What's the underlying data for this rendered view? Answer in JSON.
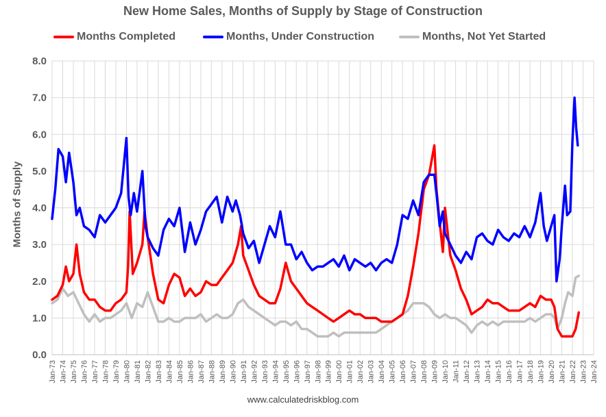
{
  "chart_data": {
    "type": "line",
    "title": "New Home Sales, Months of Supply by Stage of Construction",
    "ylabel": "Months of Supply",
    "xlabel": "",
    "ylim": [
      0,
      8
    ],
    "yticks": [
      "0.0",
      "1.0",
      "2.0",
      "3.0",
      "4.0",
      "5.0",
      "6.0",
      "7.0",
      "8.0"
    ],
    "xlim": [
      1973,
      2024
    ],
    "xticks": [
      "Jan-73",
      "Jan-74",
      "Jan-75",
      "Jan-76",
      "Jan-77",
      "Jan-78",
      "Jan-79",
      "Jan-80",
      "Jan-81",
      "Jan-82",
      "Jan-83",
      "Jan-84",
      "Jan-85",
      "Jan-86",
      "Jan-87",
      "Jan-88",
      "Jan-89",
      "Jan-90",
      "Jan-91",
      "Jan-92",
      "Jan-93",
      "Jan-94",
      "Jan-95",
      "Jan-96",
      "Jan-97",
      "Jan-98",
      "Jan-99",
      "Jan-00",
      "Jan-01",
      "Jan-02",
      "Jan-03",
      "Jan-04",
      "Jan-05",
      "Jan-06",
      "Jan-07",
      "Jan-08",
      "Jan-09",
      "Jan-10",
      "Jan-11",
      "Jan-12",
      "Jan-13",
      "Jan-14",
      "Jan-15",
      "Jan-16",
      "Jan-17",
      "Jan-18",
      "Jan-19",
      "Jan-20",
      "Jan-21",
      "Jan-22",
      "Jan-23",
      "Jan-24"
    ],
    "grid": true,
    "legend_position": "top",
    "series": [
      {
        "name": "Months Completed",
        "color": "#ff0000",
        "x": [
          1973.0,
          1973.5,
          1974.0,
          1974.3,
          1974.6,
          1975.0,
          1975.3,
          1975.6,
          1976.0,
          1976.5,
          1977.0,
          1977.5,
          1978.0,
          1978.5,
          1979.0,
          1979.5,
          1980.0,
          1980.15,
          1980.3,
          1980.6,
          1981.0,
          1981.5,
          1981.7,
          1982.0,
          1982.5,
          1983.0,
          1983.5,
          1984.0,
          1984.5,
          1985.0,
          1985.5,
          1986.0,
          1986.5,
          1987.0,
          1987.5,
          1988.0,
          1988.5,
          1989.0,
          1989.5,
          1990.0,
          1990.5,
          1990.8,
          1991.0,
          1991.5,
          1992.0,
          1992.5,
          1993.0,
          1993.5,
          1994.0,
          1994.5,
          1995.0,
          1995.5,
          1996.0,
          1996.5,
          1997.0,
          1997.5,
          1998.0,
          1998.5,
          1999.0,
          1999.5,
          2000.0,
          2000.5,
          2001.0,
          2001.5,
          2002.0,
          2002.5,
          2003.0,
          2003.5,
          2004.0,
          2004.5,
          2005.0,
          2005.5,
          2006.0,
          2006.5,
          2007.0,
          2007.5,
          2008.0,
          2008.5,
          2009.0,
          2009.2,
          2009.5,
          2009.8,
          2010.0,
          2010.3,
          2010.5,
          2011.0,
          2011.5,
          2012.0,
          2012.5,
          2013.0,
          2013.5,
          2014.0,
          2014.5,
          2015.0,
          2015.5,
          2016.0,
          2016.5,
          2017.0,
          2017.5,
          2018.0,
          2018.5,
          2019.0,
          2019.5,
          2020.0,
          2020.3,
          2020.6,
          2021.0,
          2021.5,
          2022.0,
          2022.3,
          2022.6
        ],
        "y": [
          1.5,
          1.6,
          1.9,
          2.4,
          2.0,
          2.2,
          3.0,
          2.2,
          1.7,
          1.5,
          1.5,
          1.3,
          1.2,
          1.2,
          1.4,
          1.5,
          1.7,
          2.4,
          3.9,
          2.2,
          2.5,
          3.0,
          3.9,
          3.2,
          2.2,
          1.5,
          1.4,
          1.9,
          2.2,
          2.1,
          1.6,
          1.8,
          1.6,
          1.7,
          2.0,
          1.9,
          1.9,
          2.1,
          2.3,
          2.5,
          3.0,
          3.5,
          2.7,
          2.3,
          1.9,
          1.6,
          1.5,
          1.4,
          1.4,
          1.8,
          2.5,
          2.0,
          1.8,
          1.6,
          1.4,
          1.3,
          1.2,
          1.1,
          1.0,
          0.9,
          1.0,
          1.1,
          1.2,
          1.1,
          1.1,
          1.0,
          1.0,
          1.0,
          0.9,
          0.9,
          0.9,
          1.0,
          1.1,
          1.6,
          2.4,
          3.3,
          4.5,
          4.9,
          5.7,
          4.5,
          3.6,
          2.8,
          4.0,
          3.2,
          2.7,
          2.3,
          1.8,
          1.5,
          1.1,
          1.2,
          1.3,
          1.5,
          1.4,
          1.4,
          1.3,
          1.2,
          1.2,
          1.2,
          1.3,
          1.4,
          1.3,
          1.6,
          1.5,
          1.5,
          1.3,
          0.7,
          0.5,
          0.5,
          0.5,
          0.7,
          1.15
        ]
      },
      {
        "name": "Months, Under Construction",
        "color": "#0000ff",
        "x": [
          1973.0,
          1973.3,
          1973.6,
          1974.0,
          1974.3,
          1974.6,
          1975.0,
          1975.3,
          1975.6,
          1976.0,
          1976.5,
          1977.0,
          1977.5,
          1978.0,
          1978.5,
          1979.0,
          1979.5,
          1980.0,
          1980.2,
          1980.4,
          1980.7,
          1981.0,
          1981.5,
          1981.8,
          1982.0,
          1982.5,
          1983.0,
          1983.5,
          1984.0,
          1984.5,
          1985.0,
          1985.5,
          1986.0,
          1986.5,
          1987.0,
          1987.5,
          1988.0,
          1988.5,
          1989.0,
          1989.5,
          1990.0,
          1990.3,
          1990.7,
          1991.0,
          1991.5,
          1992.0,
          1992.5,
          1993.0,
          1993.5,
          1994.0,
          1994.5,
          1995.0,
          1995.5,
          1996.0,
          1996.5,
          1997.0,
          1997.5,
          1998.0,
          1998.5,
          1999.0,
          1999.5,
          2000.0,
          2000.5,
          2001.0,
          2001.5,
          2002.0,
          2002.5,
          2003.0,
          2003.5,
          2004.0,
          2004.5,
          2005.0,
          2005.5,
          2006.0,
          2006.5,
          2007.0,
          2007.5,
          2008.0,
          2008.5,
          2009.0,
          2009.2,
          2009.5,
          2009.8,
          2010.0,
          2010.5,
          2011.0,
          2011.5,
          2012.0,
          2012.5,
          2013.0,
          2013.5,
          2014.0,
          2014.5,
          2015.0,
          2015.5,
          2016.0,
          2016.5,
          2017.0,
          2017.5,
          2018.0,
          2018.5,
          2019.0,
          2019.3,
          2019.6,
          2020.0,
          2020.3,
          2020.5,
          2020.8,
          2021.0,
          2021.3,
          2021.5,
          2021.8,
          2022.0,
          2022.2,
          2022.35,
          2022.5
        ],
        "y": [
          3.7,
          4.5,
          5.6,
          5.4,
          4.7,
          5.5,
          4.7,
          3.8,
          4.0,
          3.5,
          3.4,
          3.2,
          3.8,
          3.6,
          3.8,
          4.0,
          4.4,
          5.9,
          4.3,
          3.8,
          4.4,
          3.9,
          5.0,
          3.5,
          3.2,
          2.9,
          2.7,
          3.4,
          3.7,
          3.5,
          4.0,
          2.8,
          3.6,
          3.0,
          3.4,
          3.9,
          4.1,
          4.3,
          3.6,
          4.3,
          3.9,
          4.2,
          3.8,
          3.3,
          2.9,
          3.1,
          2.5,
          3.0,
          3.5,
          3.2,
          3.9,
          3.0,
          3.0,
          2.6,
          2.8,
          2.5,
          2.3,
          2.4,
          2.4,
          2.5,
          2.6,
          2.4,
          2.7,
          2.3,
          2.6,
          2.5,
          2.4,
          2.5,
          2.3,
          2.5,
          2.6,
          2.5,
          3.0,
          3.8,
          3.7,
          4.2,
          3.8,
          4.7,
          4.9,
          4.9,
          4.4,
          3.5,
          3.9,
          3.3,
          3.0,
          2.7,
          2.5,
          2.8,
          2.6,
          3.2,
          3.3,
          3.1,
          3.0,
          3.4,
          3.2,
          3.1,
          3.3,
          3.2,
          3.5,
          3.2,
          3.6,
          4.4,
          3.5,
          3.1,
          3.5,
          3.8,
          2.0,
          2.6,
          3.5,
          4.6,
          3.8,
          3.9,
          5.8,
          7.0,
          6.2,
          5.7
        ]
      },
      {
        "name": "Months, Not Yet Started",
        "color": "#bfbfbf",
        "x": [
          1973.0,
          1973.5,
          1974.0,
          1974.5,
          1975.0,
          1975.5,
          1976.0,
          1976.5,
          1977.0,
          1977.5,
          1978.0,
          1978.5,
          1979.0,
          1979.5,
          1980.0,
          1980.5,
          1981.0,
          1981.5,
          1982.0,
          1982.5,
          1983.0,
          1983.5,
          1984.0,
          1984.5,
          1985.0,
          1985.5,
          1986.0,
          1986.5,
          1987.0,
          1987.5,
          1988.0,
          1988.5,
          1989.0,
          1989.5,
          1990.0,
          1990.5,
          1991.0,
          1991.5,
          1992.0,
          1992.5,
          1993.0,
          1993.5,
          1994.0,
          1994.5,
          1995.0,
          1995.5,
          1996.0,
          1996.5,
          1997.0,
          1997.5,
          1998.0,
          1998.5,
          1999.0,
          1999.5,
          2000.0,
          2000.5,
          2001.0,
          2001.5,
          2002.0,
          2002.5,
          2003.0,
          2003.5,
          2004.0,
          2004.5,
          2005.0,
          2005.5,
          2006.0,
          2006.5,
          2007.0,
          2007.5,
          2008.0,
          2008.5,
          2009.0,
          2009.5,
          2010.0,
          2010.5,
          2011.0,
          2011.5,
          2012.0,
          2012.5,
          2013.0,
          2013.5,
          2014.0,
          2014.5,
          2015.0,
          2015.5,
          2016.0,
          2016.5,
          2017.0,
          2017.5,
          2018.0,
          2018.5,
          2019.0,
          2019.5,
          2020.0,
          2020.3,
          2020.6,
          2021.0,
          2021.3,
          2021.6,
          2022.0,
          2022.3,
          2022.6
        ],
        "y": [
          1.4,
          1.5,
          1.8,
          1.6,
          1.7,
          1.4,
          1.1,
          0.9,
          1.1,
          0.9,
          1.0,
          1.0,
          1.1,
          1.2,
          1.4,
          1.0,
          1.4,
          1.3,
          1.7,
          1.3,
          0.9,
          0.9,
          1.0,
          0.9,
          0.9,
          1.0,
          1.0,
          1.0,
          1.1,
          0.9,
          1.0,
          1.1,
          1.0,
          1.0,
          1.1,
          1.4,
          1.5,
          1.3,
          1.2,
          1.1,
          1.0,
          0.9,
          0.8,
          0.9,
          0.9,
          0.8,
          0.9,
          0.7,
          0.7,
          0.6,
          0.5,
          0.5,
          0.5,
          0.6,
          0.5,
          0.6,
          0.6,
          0.6,
          0.6,
          0.6,
          0.6,
          0.6,
          0.7,
          0.8,
          0.9,
          1.0,
          1.1,
          1.2,
          1.4,
          1.4,
          1.4,
          1.3,
          1.1,
          1.0,
          1.1,
          1.0,
          1.0,
          0.9,
          0.8,
          0.6,
          0.8,
          0.9,
          0.8,
          0.9,
          0.8,
          0.9,
          0.9,
          0.9,
          0.9,
          0.9,
          1.0,
          0.9,
          1.0,
          1.1,
          1.1,
          1.0,
          0.7,
          1.0,
          1.4,
          1.7,
          1.6,
          2.1,
          2.15
        ]
      }
    ]
  },
  "footer": "www.calculatedriskblog.com"
}
